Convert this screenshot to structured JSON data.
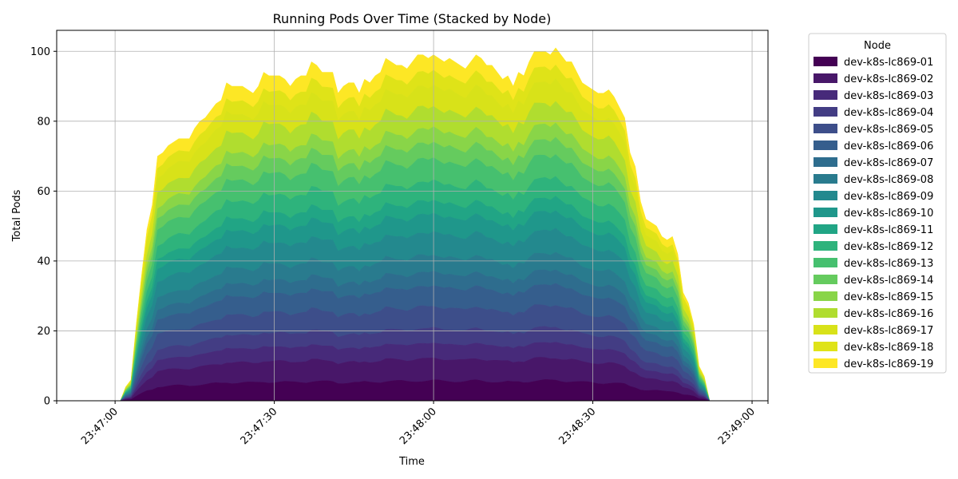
{
  "chart_data": {
    "type": "area",
    "stacked": true,
    "title": "Running Pods Over Time (Stacked by Node)",
    "xlabel": "Time",
    "ylabel": "Total Pods",
    "x_start": "23:46:49",
    "x_step_seconds": 1,
    "x_ticks": [
      "23:47:00",
      "23:47:30",
      "23:48:00",
      "23:48:30",
      "23:49:00"
    ],
    "xlim": [
      "23:46:49",
      "23:49:03"
    ],
    "y_ticks": [
      0,
      20,
      40,
      60,
      80,
      100
    ],
    "ylim": [
      0,
      106
    ],
    "grid": true,
    "legend_title": "Node",
    "legend_position": "outside-right-top",
    "series_colors": [
      "#440154",
      "#481769",
      "#472a7a",
      "#433d84",
      "#3d4e8a",
      "#355e8d",
      "#2e6d8e",
      "#297b8e",
      "#23898e",
      "#1f978b",
      "#21a585",
      "#2eb37c",
      "#46c06f",
      "#65cb5e",
      "#89d548",
      "#b0dd2f",
      "#d8e219",
      "#dfe318",
      "#fde725"
    ],
    "series_names": [
      "dev-k8s-lc869-01",
      "dev-k8s-lc869-02",
      "dev-k8s-lc869-03",
      "dev-k8s-lc869-04",
      "dev-k8s-lc869-05",
      "dev-k8s-lc869-06",
      "dev-k8s-lc869-07",
      "dev-k8s-lc869-08",
      "dev-k8s-lc869-09",
      "dev-k8s-lc869-10",
      "dev-k8s-lc869-11",
      "dev-k8s-lc869-12",
      "dev-k8s-lc869-13",
      "dev-k8s-lc869-14",
      "dev-k8s-lc869-15",
      "dev-k8s-lc869-16",
      "dev-k8s-lc869-17",
      "dev-k8s-lc869-18",
      "dev-k8s-lc869-19"
    ],
    "totals": [
      0,
      0,
      0,
      0,
      0,
      0,
      0,
      0,
      0,
      0,
      0,
      0,
      0,
      4,
      6,
      22,
      36,
      49,
      56,
      70,
      71,
      73,
      74,
      75,
      75,
      75,
      78,
      80,
      81,
      83,
      85,
      86,
      91,
      90,
      90,
      90,
      89,
      88,
      90,
      94,
      93,
      93,
      93,
      92,
      90,
      92,
      93,
      93,
      97,
      96,
      94,
      94,
      94,
      88,
      90,
      91,
      91,
      88,
      92,
      91,
      93,
      94,
      98,
      97,
      96,
      96,
      95,
      97,
      99,
      99,
      98,
      99,
      98,
      97,
      98,
      97,
      96,
      95,
      97,
      99,
      98,
      96,
      96,
      94,
      92,
      93,
      90,
      94,
      93,
      97,
      100,
      100,
      100,
      99,
      101,
      99,
      97,
      97,
      94,
      91,
      90,
      89,
      88,
      88,
      89,
      87,
      84,
      81,
      71,
      67,
      57,
      52,
      51,
      50,
      47,
      46,
      47,
      42,
      31,
      28,
      22,
      10,
      7,
      0,
      0,
      0,
      0,
      0,
      0,
      0,
      0,
      0,
      0,
      0,
      0
    ]
  }
}
